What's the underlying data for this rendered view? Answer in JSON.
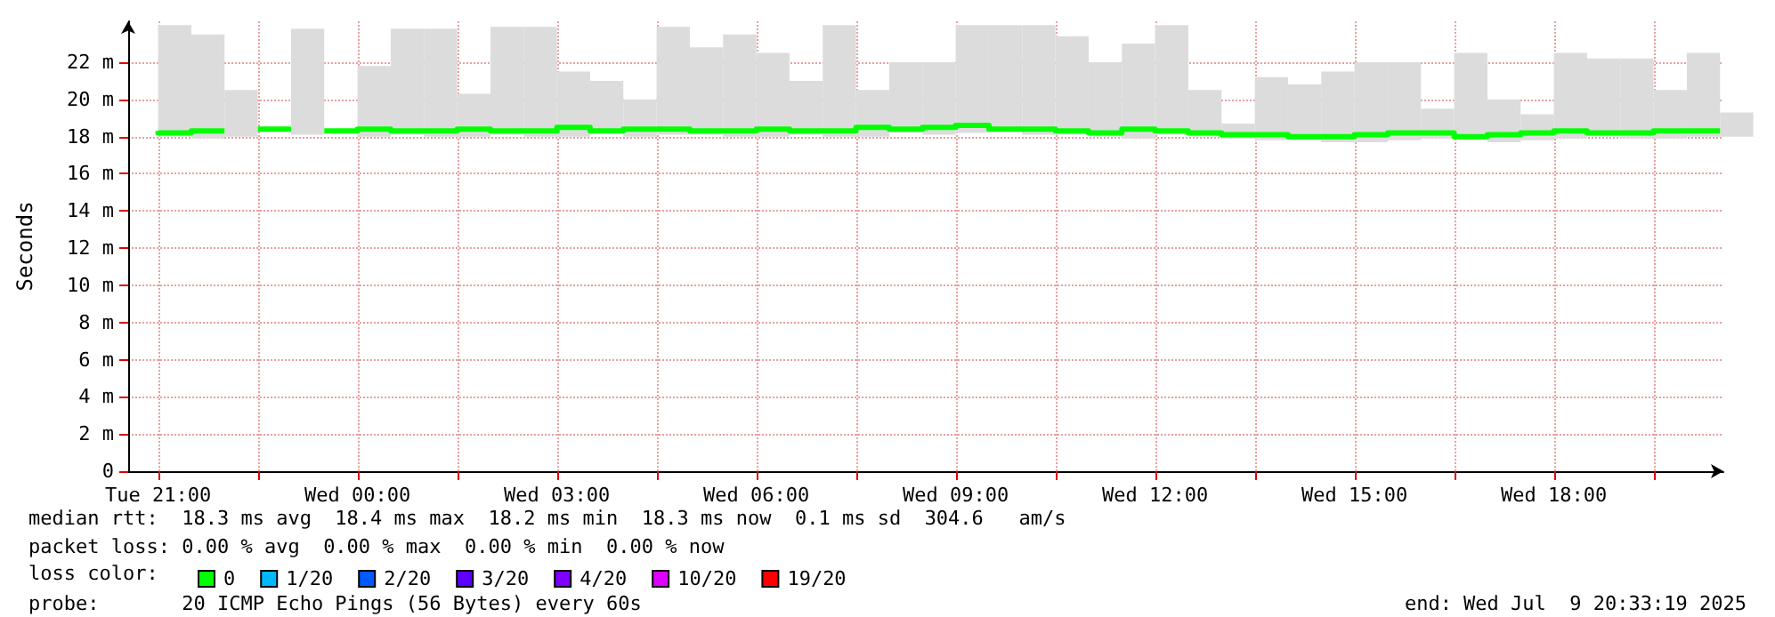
{
  "chart_data": {
    "type": "step",
    "ylabel": "Seconds",
    "x": [
      "2025-07-08T21:00",
      "2025-07-08T21:30",
      "2025-07-08T22:00",
      "2025-07-08T22:30",
      "2025-07-08T23:00",
      "2025-07-08T23:30",
      "2025-07-09T00:00",
      "2025-07-09T00:30",
      "2025-07-09T01:00",
      "2025-07-09T01:30",
      "2025-07-09T02:00",
      "2025-07-09T02:30",
      "2025-07-09T03:00",
      "2025-07-09T03:30",
      "2025-07-09T04:00",
      "2025-07-09T04:30",
      "2025-07-09T05:00",
      "2025-07-09T05:30",
      "2025-07-09T06:00",
      "2025-07-09T06:30",
      "2025-07-09T07:00",
      "2025-07-09T07:30",
      "2025-07-09T08:00",
      "2025-07-09T08:30",
      "2025-07-09T09:00",
      "2025-07-09T09:30",
      "2025-07-09T10:00",
      "2025-07-09T10:30",
      "2025-07-09T11:00",
      "2025-07-09T11:30",
      "2025-07-09T12:00",
      "2025-07-09T12:30",
      "2025-07-09T13:00",
      "2025-07-09T13:30",
      "2025-07-09T14:00",
      "2025-07-09T14:30",
      "2025-07-09T15:00",
      "2025-07-09T15:30",
      "2025-07-09T16:00",
      "2025-07-09T16:30",
      "2025-07-09T17:00",
      "2025-07-09T17:30",
      "2025-07-09T18:00",
      "2025-07-09T18:30",
      "2025-07-09T19:00",
      "2025-07-09T19:30",
      "2025-07-09T20:00",
      "2025-07-09T20:30"
    ],
    "series": [
      {
        "name": "0",
        "color": "#00ff00",
        "values": [
          18.3,
          18.2,
          18.3,
          null,
          18.4,
          null,
          18.3,
          18.4,
          18.3,
          18.3,
          18.4,
          18.3,
          18.3,
          18.5,
          18.3,
          18.4,
          18.4,
          18.3,
          18.3,
          18.4,
          18.3,
          18.3,
          18.5,
          18.4,
          18.5,
          18.6,
          18.4,
          18.4,
          18.3,
          18.2,
          18.4,
          18.3,
          18.2,
          18.1,
          18.1,
          18.0,
          18.0,
          18.1,
          18.2,
          18.2,
          18.0,
          18.1,
          18.2,
          18.3,
          18.2,
          18.2,
          18.3,
          18.3
        ],
        "lower": [
          18.0,
          17.9,
          18.0,
          null,
          18.1,
          null,
          18.0,
          18.1,
          18.0,
          18.0,
          18.1,
          18.0,
          18.0,
          18.2,
          18.0,
          18.1,
          18.1,
          18.0,
          18.0,
          18.1,
          18.0,
          18.0,
          18.2,
          18.1,
          18.2,
          18.3,
          18.1,
          18.1,
          18.0,
          17.9,
          18.1,
          18.0,
          17.9,
          17.8,
          17.8,
          17.7,
          17.7,
          17.8,
          17.9,
          17.9,
          17.7,
          17.8,
          17.9,
          18.0,
          17.9,
          17.9,
          18.0,
          18.0
        ],
        "upper": [
          24.0,
          23.5,
          20.5,
          null,
          23.8,
          null,
          21.8,
          23.8,
          23.8,
          20.3,
          23.9,
          23.9,
          21.5,
          21.0,
          20.0,
          23.9,
          22.8,
          23.5,
          22.5,
          21.0,
          24.0,
          20.5,
          22.0,
          22.0,
          24.0,
          24.0,
          24.0,
          23.4,
          22.0,
          23.0,
          24.0,
          20.5,
          18.7,
          21.2,
          20.8,
          21.5,
          22.0,
          22.0,
          19.5,
          22.5,
          20.0,
          19.2,
          22.5,
          22.2,
          22.2,
          20.5,
          22.5,
          19.3
        ]
      },
      {
        "name": "1/20",
        "color": "#00b8ff",
        "values": [
          null,
          null,
          null,
          null,
          null,
          null,
          null,
          null,
          null,
          null,
          null,
          null,
          null,
          null,
          null,
          null,
          null,
          null,
          null,
          null,
          null,
          null,
          null,
          null,
          null,
          null,
          null,
          null,
          null,
          null,
          null,
          null,
          null,
          null,
          null,
          null,
          null,
          null,
          null,
          null,
          null,
          null,
          null,
          null,
          null,
          null,
          null,
          null
        ]
      },
      {
        "name": "2/20",
        "color": "#0059ff",
        "values": [
          null,
          null,
          null,
          null,
          null,
          null,
          null,
          null,
          null,
          null,
          null,
          null,
          null,
          null,
          null,
          null,
          null,
          null,
          null,
          null,
          null,
          null,
          null,
          null,
          null,
          null,
          null,
          null,
          null,
          null,
          null,
          null,
          null,
          null,
          null,
          null,
          null,
          null,
          null,
          null,
          null,
          null,
          null,
          null,
          null,
          null,
          null,
          null
        ]
      },
      {
        "name": "3/20",
        "color": "#5e00ff",
        "values": [
          null,
          null,
          null,
          null,
          null,
          null,
          null,
          null,
          null,
          null,
          null,
          null,
          null,
          null,
          null,
          null,
          null,
          null,
          null,
          null,
          null,
          null,
          null,
          null,
          null,
          null,
          null,
          null,
          null,
          null,
          null,
          null,
          null,
          null,
          null,
          null,
          null,
          null,
          null,
          null,
          null,
          null,
          null,
          null,
          null,
          null,
          null,
          null
        ]
      },
      {
        "name": "4/20",
        "color": "#7e00ff",
        "values": [
          null,
          null,
          null,
          null,
          null,
          null,
          null,
          null,
          null,
          null,
          null,
          null,
          null,
          null,
          null,
          null,
          null,
          null,
          null,
          null,
          null,
          null,
          null,
          null,
          null,
          null,
          null,
          null,
          null,
          null,
          null,
          null,
          null,
          null,
          null,
          null,
          null,
          null,
          null,
          null,
          null,
          null,
          null,
          null,
          null,
          null,
          null,
          null
        ]
      },
      {
        "name": "10/20",
        "color": "#dd00ff",
        "values": [
          null,
          null,
          null,
          null,
          null,
          null,
          null,
          null,
          null,
          null,
          null,
          null,
          null,
          null,
          null,
          null,
          null,
          null,
          null,
          null,
          null,
          null,
          null,
          null,
          null,
          null,
          null,
          null,
          null,
          null,
          null,
          null,
          null,
          null,
          null,
          null,
          null,
          null,
          null,
          null,
          null,
          null,
          null,
          null,
          null,
          null,
          null,
          null
        ]
      },
      {
        "name": "19/20",
        "color": "#ff0000",
        "values": [
          null,
          null,
          null,
          null,
          null,
          null,
          null,
          null,
          null,
          null,
          null,
          null,
          null,
          null,
          null,
          null,
          null,
          null,
          null,
          null,
          null,
          null,
          null,
          null,
          null,
          null,
          null,
          null,
          null,
          null,
          null,
          null,
          null,
          null,
          null,
          null,
          null,
          null,
          null,
          null,
          null,
          null,
          null,
          null,
          null,
          null,
          null,
          null
        ]
      }
    ],
    "legend_title": "loss color:",
    "legend": "bottom left",
    "xlim": [
      "2025-07-08T20:33",
      "2025-07-09T20:33"
    ],
    "xticks": [
      {
        "value": "2025-07-08T21:00",
        "label": "Tue 21:00"
      },
      {
        "value": "2025-07-08T22:30",
        "label": null
      },
      {
        "value": "2025-07-09T00:00",
        "label": "Wed 00:00"
      },
      {
        "value": "2025-07-09T01:30",
        "label": null
      },
      {
        "value": "2025-07-09T03:00",
        "label": "Wed 03:00"
      },
      {
        "value": "2025-07-09T04:30",
        "label": null
      },
      {
        "value": "2025-07-09T06:00",
        "label": "Wed 06:00"
      },
      {
        "value": "2025-07-09T07:30",
        "label": null
      },
      {
        "value": "2025-07-09T09:00",
        "label": "Wed 09:00"
      },
      {
        "value": "2025-07-09T10:30",
        "label": null
      },
      {
        "value": "2025-07-09T12:00",
        "label": "Wed 12:00"
      },
      {
        "value": "2025-07-09T13:30",
        "label": null
      },
      {
        "value": "2025-07-09T15:00",
        "label": "Wed 15:00"
      },
      {
        "value": "2025-07-09T16:30",
        "label": null
      },
      {
        "value": "2025-07-09T18:00",
        "label": "Wed 18:00"
      },
      {
        "value": "2025-07-09T19:30",
        "label": null
      }
    ],
    "ylim": [
      0,
      24.2
    ],
    "yticks": [
      0,
      {
        "value": 2,
        "label": "2 m"
      },
      {
        "value": 4,
        "label": "4 m"
      },
      {
        "value": 6,
        "label": "6 m"
      },
      {
        "value": 8,
        "label": "8 m"
      },
      {
        "value": 10,
        "label": "10 m"
      },
      {
        "value": 12,
        "label": "12 m"
      },
      {
        "value": 14,
        "label": "14 m"
      },
      {
        "value": 16,
        "label": "16 m"
      },
      {
        "value": 18,
        "label": "18 m"
      },
      {
        "value": 20,
        "label": "20 m"
      },
      {
        "value": 22,
        "label": "22 m"
      }
    ],
    "grid": true,
    "annotations": [
      "median rtt:  18.3 ms avg  18.4 ms max  18.2 ms min  18.3 ms now  0.1 ms sd  304.6   am/s",
      "packet loss: 0.00 % avg  0.00 % max  0.00 % min  0.00 % now",
      "probe:       20 ICMP Echo Pings (56 Bytes) every 60s",
      "end: Wed Jul  9 20:33:19 2025"
    ]
  }
}
